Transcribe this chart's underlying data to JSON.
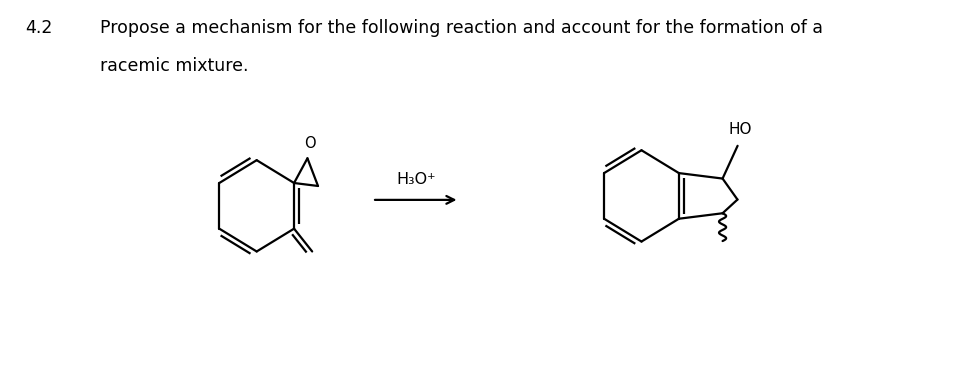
{
  "title_num": "4.2",
  "title_text_line1": "Propose a mechanism for the following reaction and account for the formation of a",
  "title_text_line2": "racemic mixture.",
  "reagent_label": "H₃O⁺",
  "ho_label": "HO",
  "o_label": "O",
  "bg_color": "#ffffff",
  "text_color": "#000000",
  "font_size_title": 12.5,
  "font_size_label": 11,
  "line_width": 1.6
}
